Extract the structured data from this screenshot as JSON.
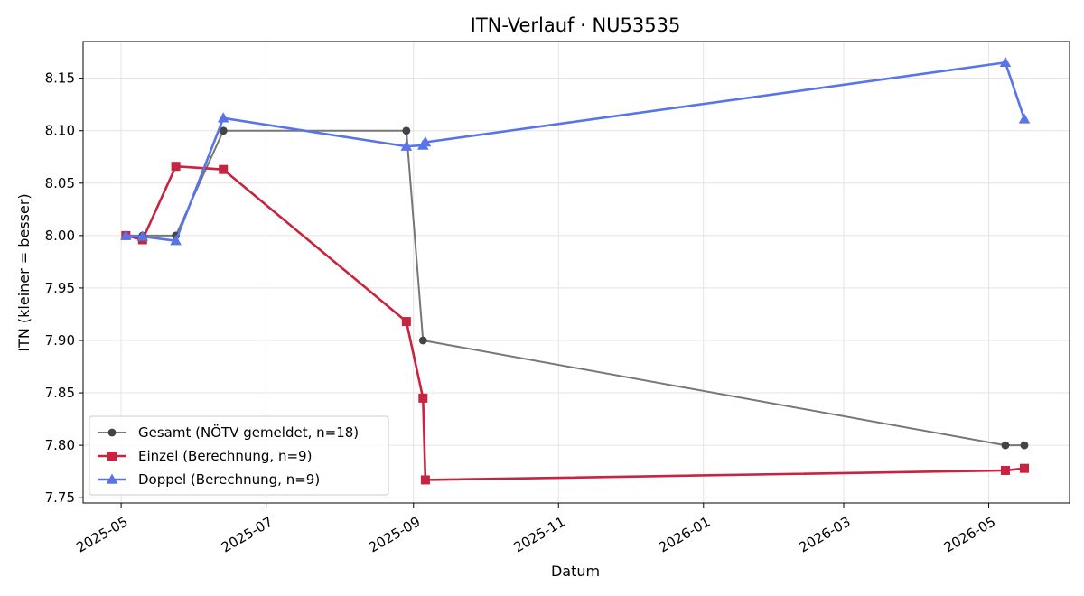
{
  "chart_data": {
    "type": "line",
    "title": "ITN-Verlauf · NU53535",
    "xlabel": "Datum",
    "ylabel": "ITN  (kleiner = besser)",
    "x_axis_type": "date",
    "xlim": [
      "2025-04-15",
      "2026-06-04"
    ],
    "ylim": [
      7.745,
      8.185
    ],
    "xticks": [
      "2025-05-01",
      "2025-07-01",
      "2025-09-01",
      "2025-11-01",
      "2026-01-01",
      "2026-03-01",
      "2026-05-01"
    ],
    "xtick_labels": [
      "2025-05",
      "2025-07",
      "2025-09",
      "2025-11",
      "2026-01",
      "2026-03",
      "2026-05"
    ],
    "yticks": [
      7.75,
      7.8,
      7.85,
      7.9,
      7.95,
      8.0,
      8.05,
      8.1,
      8.15
    ],
    "ytick_labels": [
      "7.75",
      "7.80",
      "7.85",
      "7.90",
      "7.95",
      "8.00",
      "8.05",
      "8.10",
      "8.15"
    ],
    "grid": true,
    "legend_position": "lower-left",
    "series": [
      {
        "name": "Gesamt (NÖTV gemeldet, n=18)",
        "color": "#777777",
        "marker_color": "#444444",
        "marker": "circle",
        "points": [
          {
            "x": "2025-05-03",
            "y": 8.0
          },
          {
            "x": "2025-05-10",
            "y": 8.0
          },
          {
            "x": "2025-05-24",
            "y": 8.0
          },
          {
            "x": "2025-06-13",
            "y": 8.1
          },
          {
            "x": "2025-08-29",
            "y": 8.1
          },
          {
            "x": "2025-09-05",
            "y": 7.9
          },
          {
            "x": "2026-05-08",
            "y": 7.8
          },
          {
            "x": "2026-05-16",
            "y": 7.8
          }
        ]
      },
      {
        "name": "Einzel (Berechnung, n=9)",
        "color": "#c8233f",
        "marker_color": "#c8233f",
        "marker": "square",
        "points": [
          {
            "x": "2025-05-03",
            "y": 8.0
          },
          {
            "x": "2025-05-10",
            "y": 7.996
          },
          {
            "x": "2025-05-24",
            "y": 8.066
          },
          {
            "x": "2025-06-13",
            "y": 8.063
          },
          {
            "x": "2025-08-29",
            "y": 7.918
          },
          {
            "x": "2025-09-05",
            "y": 7.845
          },
          {
            "x": "2025-09-06",
            "y": 7.767
          },
          {
            "x": "2026-05-08",
            "y": 7.776
          },
          {
            "x": "2026-05-16",
            "y": 7.778
          }
        ]
      },
      {
        "name": "Doppel (Berechnung, n=9)",
        "color": "#5875e8",
        "marker_color": "#5875e8",
        "marker": "triangle",
        "points": [
          {
            "x": "2025-05-03",
            "y": 8.0
          },
          {
            "x": "2025-05-10",
            "y": 7.999
          },
          {
            "x": "2025-05-24",
            "y": 7.995
          },
          {
            "x": "2025-06-13",
            "y": 8.112
          },
          {
            "x": "2025-08-29",
            "y": 8.085
          },
          {
            "x": "2025-09-05",
            "y": 8.086
          },
          {
            "x": "2025-09-06",
            "y": 8.089
          },
          {
            "x": "2026-05-08",
            "y": 8.165
          },
          {
            "x": "2026-05-16",
            "y": 8.111
          }
        ]
      }
    ]
  }
}
